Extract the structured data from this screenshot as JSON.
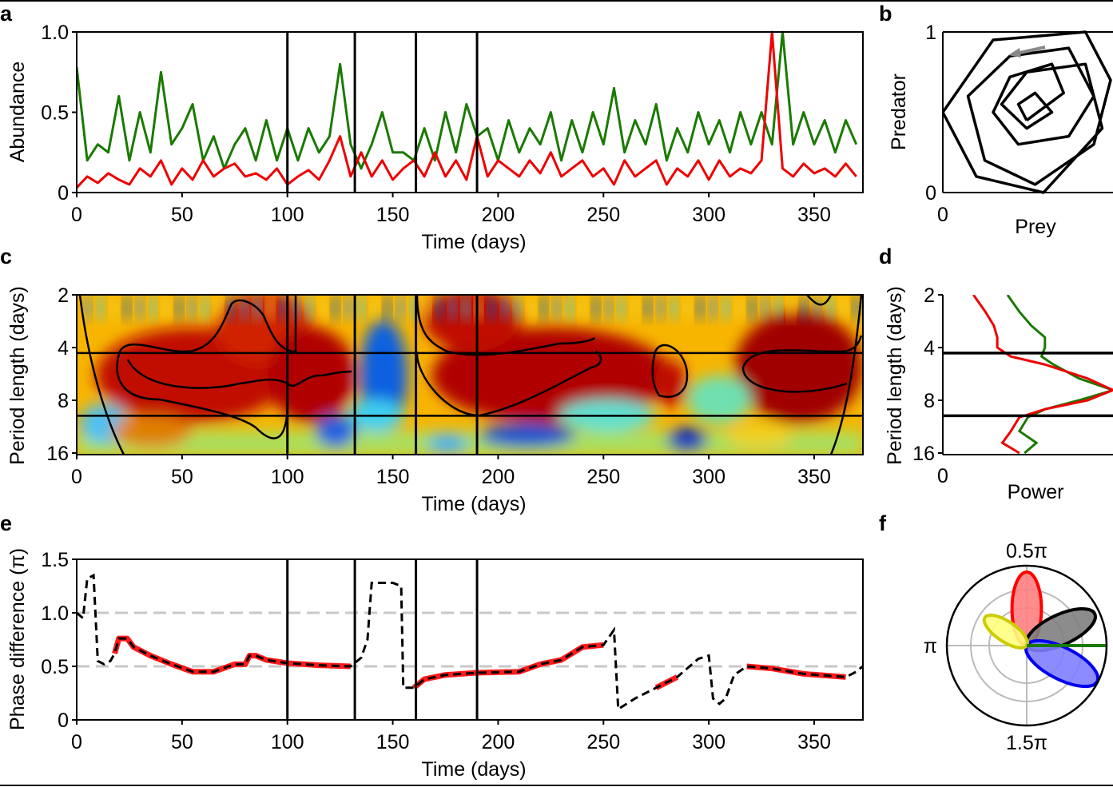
{
  "colors": {
    "prey": "#dd0000",
    "predator": "#1a7a00",
    "highlight": "#ff1a1a",
    "ref": "#c8c8c8"
  },
  "chart_data": [
    {
      "panel": "a",
      "type": "line",
      "xlabel": "Time (days)",
      "ylabel": "Abundance",
      "xlim": [
        0,
        373
      ],
      "ylim": [
        0,
        1
      ],
      "xticks": [
        "0",
        "50",
        "100",
        "150",
        "200",
        "250",
        "300",
        "350"
      ],
      "yticks": [
        "0",
        "0.5",
        "1.0"
      ],
      "vlines": [
        100,
        132,
        161,
        190
      ],
      "x_step": 5,
      "series": [
        {
          "color": "#1a7a00",
          "values": [
            0.78,
            0.2,
            0.3,
            0.25,
            0.6,
            0.2,
            0.5,
            0.25,
            0.75,
            0.3,
            0.4,
            0.55,
            0.2,
            0.35,
            0.15,
            0.3,
            0.4,
            0.2,
            0.45,
            0.2,
            0.4,
            0.2,
            0.4,
            0.25,
            0.35,
            0.8,
            0.3,
            0.15,
            0.3,
            0.5,
            0.25,
            0.25,
            0.2,
            0.4,
            0.2,
            0.5,
            0.25,
            0.55,
            0.35,
            0.4,
            0.2,
            0.45,
            0.25,
            0.4,
            0.3,
            0.5,
            0.2,
            0.45,
            0.25,
            0.5,
            0.3,
            0.65,
            0.25,
            0.45,
            0.3,
            0.55,
            0.2,
            0.4,
            0.25,
            0.5,
            0.3,
            0.45,
            0.25,
            0.5,
            0.3,
            0.5,
            0.3,
            1.0,
            0.3,
            0.5,
            0.3,
            0.45,
            0.25,
            0.45,
            0.3
          ]
        },
        {
          "color": "#ee0000",
          "values": [
            0.03,
            0.1,
            0.06,
            0.12,
            0.08,
            0.05,
            0.15,
            0.1,
            0.2,
            0.05,
            0.15,
            0.08,
            0.2,
            0.1,
            0.15,
            0.18,
            0.1,
            0.12,
            0.08,
            0.15,
            0.05,
            0.1,
            0.14,
            0.08,
            0.2,
            0.35,
            0.1,
            0.25,
            0.1,
            0.2,
            0.08,
            0.15,
            0.2,
            0.1,
            0.25,
            0.1,
            0.2,
            0.08,
            0.35,
            0.1,
            0.2,
            0.15,
            0.1,
            0.2,
            0.12,
            0.25,
            0.1,
            0.15,
            0.2,
            0.1,
            0.15,
            0.05,
            0.2,
            0.1,
            0.15,
            0.2,
            0.05,
            0.15,
            0.1,
            0.2,
            0.08,
            0.2,
            0.1,
            0.15,
            0.12,
            0.2,
            1.0,
            0.15,
            0.1,
            0.18,
            0.12,
            0.15,
            0.1,
            0.18,
            0.1
          ]
        }
      ]
    },
    {
      "panel": "b",
      "type": "line",
      "xlabel": "Prey",
      "ylabel": "Predator",
      "xticks": [
        "0"
      ],
      "yticks": [
        "0",
        "1"
      ],
      "points": [
        [
          0.5,
          0.45
        ],
        [
          0.72,
          0.62
        ],
        [
          0.65,
          0.8
        ],
        [
          0.4,
          0.72
        ],
        [
          0.3,
          0.5
        ],
        [
          0.45,
          0.3
        ],
        [
          0.75,
          0.35
        ],
        [
          0.9,
          0.6
        ],
        [
          0.75,
          0.9
        ],
        [
          0.4,
          0.85
        ],
        [
          0.15,
          0.6
        ],
        [
          0.25,
          0.2
        ],
        [
          0.55,
          0.05
        ],
        [
          0.9,
          0.3
        ],
        [
          1.0,
          0.7
        ],
        [
          0.85,
          1.0
        ],
        [
          0.3,
          0.95
        ],
        [
          0.0,
          0.5
        ],
        [
          0.2,
          0.1
        ],
        [
          0.6,
          0.0
        ],
        [
          0.95,
          0.4
        ],
        [
          0.85,
          0.8
        ],
        [
          0.5,
          0.75
        ],
        [
          0.35,
          0.55
        ],
        [
          0.5,
          0.4
        ],
        [
          0.65,
          0.5
        ],
        [
          0.55,
          0.62
        ],
        [
          0.45,
          0.55
        ],
        [
          0.5,
          0.45
        ]
      ]
    },
    {
      "panel": "c",
      "type": "heatmap",
      "xlabel": "Time (days)",
      "ylabel": "Period length (days)",
      "xlim": [
        0,
        373
      ],
      "ylim": [
        2,
        16
      ],
      "yscale": "log2",
      "xticks": [
        "0",
        "50",
        "100",
        "150",
        "200",
        "250",
        "300",
        "350"
      ],
      "yticks": [
        "2",
        "4",
        "8",
        "16"
      ],
      "vlines": [
        100,
        132,
        161,
        190
      ],
      "hlines": [
        4.3,
        9.8
      ]
    },
    {
      "panel": "d",
      "type": "line",
      "xlabel": "Power",
      "ylabel": "Period length (days)",
      "xticks": [
        "0"
      ],
      "yticks": [
        "2",
        "4",
        "8",
        "16"
      ],
      "hlines": [
        4.3,
        9.8
      ],
      "series": [
        {
          "color": "#1a7a00",
          "period": [
            2,
            2.5,
            3,
            3.5,
            4,
            4.5,
            5,
            6,
            7,
            8,
            9,
            10,
            12,
            14,
            16
          ],
          "power": [
            0.38,
            0.45,
            0.52,
            0.6,
            0.6,
            0.58,
            0.65,
            0.8,
            1.0,
            0.8,
            0.6,
            0.5,
            0.45,
            0.55,
            0.48
          ]
        },
        {
          "color": "#ee0000",
          "period": [
            2,
            2.5,
            3,
            3.5,
            4,
            4.5,
            5,
            6,
            7,
            8,
            9,
            10,
            12,
            14,
            16
          ],
          "power": [
            0.18,
            0.25,
            0.3,
            0.32,
            0.32,
            0.4,
            0.6,
            0.85,
            1.0,
            0.85,
            0.6,
            0.45,
            0.4,
            0.35,
            0.45
          ]
        }
      ]
    },
    {
      "panel": "e",
      "type": "line",
      "xlabel": "Time (days)",
      "ylabel": "Phase difference (π)",
      "xlim": [
        0,
        373
      ],
      "ylim": [
        0,
        1.5
      ],
      "xticks": [
        "0",
        "50",
        "100",
        "150",
        "200",
        "250",
        "300",
        "350"
      ],
      "yticks": [
        "0",
        "0.5",
        "1.0",
        "1.5"
      ],
      "refs": [
        0.5,
        1.0
      ],
      "vlines": [
        100,
        132,
        161,
        190
      ],
      "x": [
        0,
        3,
        5,
        8,
        10,
        13,
        16,
        18,
        20,
        24,
        27,
        35,
        45,
        55,
        65,
        75,
        80,
        82,
        85,
        90,
        100,
        115,
        130,
        135,
        138,
        140,
        150,
        154,
        155,
        160,
        165,
        175,
        190,
        210,
        220,
        230,
        240,
        250,
        255,
        257,
        265,
        275,
        285,
        295,
        300,
        302,
        305,
        308,
        312,
        318,
        330,
        345,
        365,
        370,
        373
      ],
      "y": [
        1.0,
        0.95,
        1.32,
        1.35,
        0.55,
        0.52,
        0.55,
        0.62,
        0.76,
        0.76,
        0.68,
        0.6,
        0.52,
        0.45,
        0.45,
        0.52,
        0.52,
        0.6,
        0.6,
        0.56,
        0.53,
        0.51,
        0.5,
        0.58,
        0.75,
        1.28,
        1.28,
        1.25,
        0.3,
        0.3,
        0.38,
        0.42,
        0.44,
        0.45,
        0.52,
        0.56,
        0.68,
        0.7,
        0.84,
        0.1,
        0.2,
        0.3,
        0.4,
        0.57,
        0.6,
        0.2,
        0.15,
        0.2,
        0.42,
        0.5,
        0.48,
        0.43,
        0.4,
        0.45,
        0.5
      ],
      "highlighted_ranges": [
        [
          18,
          130
        ],
        [
          160,
          250
        ],
        [
          275,
          290
        ],
        [
          315,
          365
        ]
      ]
    },
    {
      "panel": "f",
      "type": "polar",
      "angle_labels": [
        "0.5π",
        "π",
        "1.5π"
      ],
      "petals": [
        {
          "color": "#ff0000",
          "fill": "#ff8080",
          "angle_deg": 90,
          "length": 0.92
        },
        {
          "color": "#000000",
          "fill": "#808080",
          "angle_deg": 25,
          "length": 0.94
        },
        {
          "color": "#0000ee",
          "fill": "#8080ff",
          "angle_deg": -27,
          "length": 0.99
        },
        {
          "color": "#cccc00",
          "fill": "#ffff80",
          "angle_deg": 146,
          "length": 0.63
        }
      ],
      "line": {
        "color": "#1a7a00",
        "angle_deg": 0
      }
    }
  ],
  "labels": {
    "a": "a",
    "b": "b",
    "c": "c",
    "d": "d",
    "e": "e",
    "f": "f"
  }
}
